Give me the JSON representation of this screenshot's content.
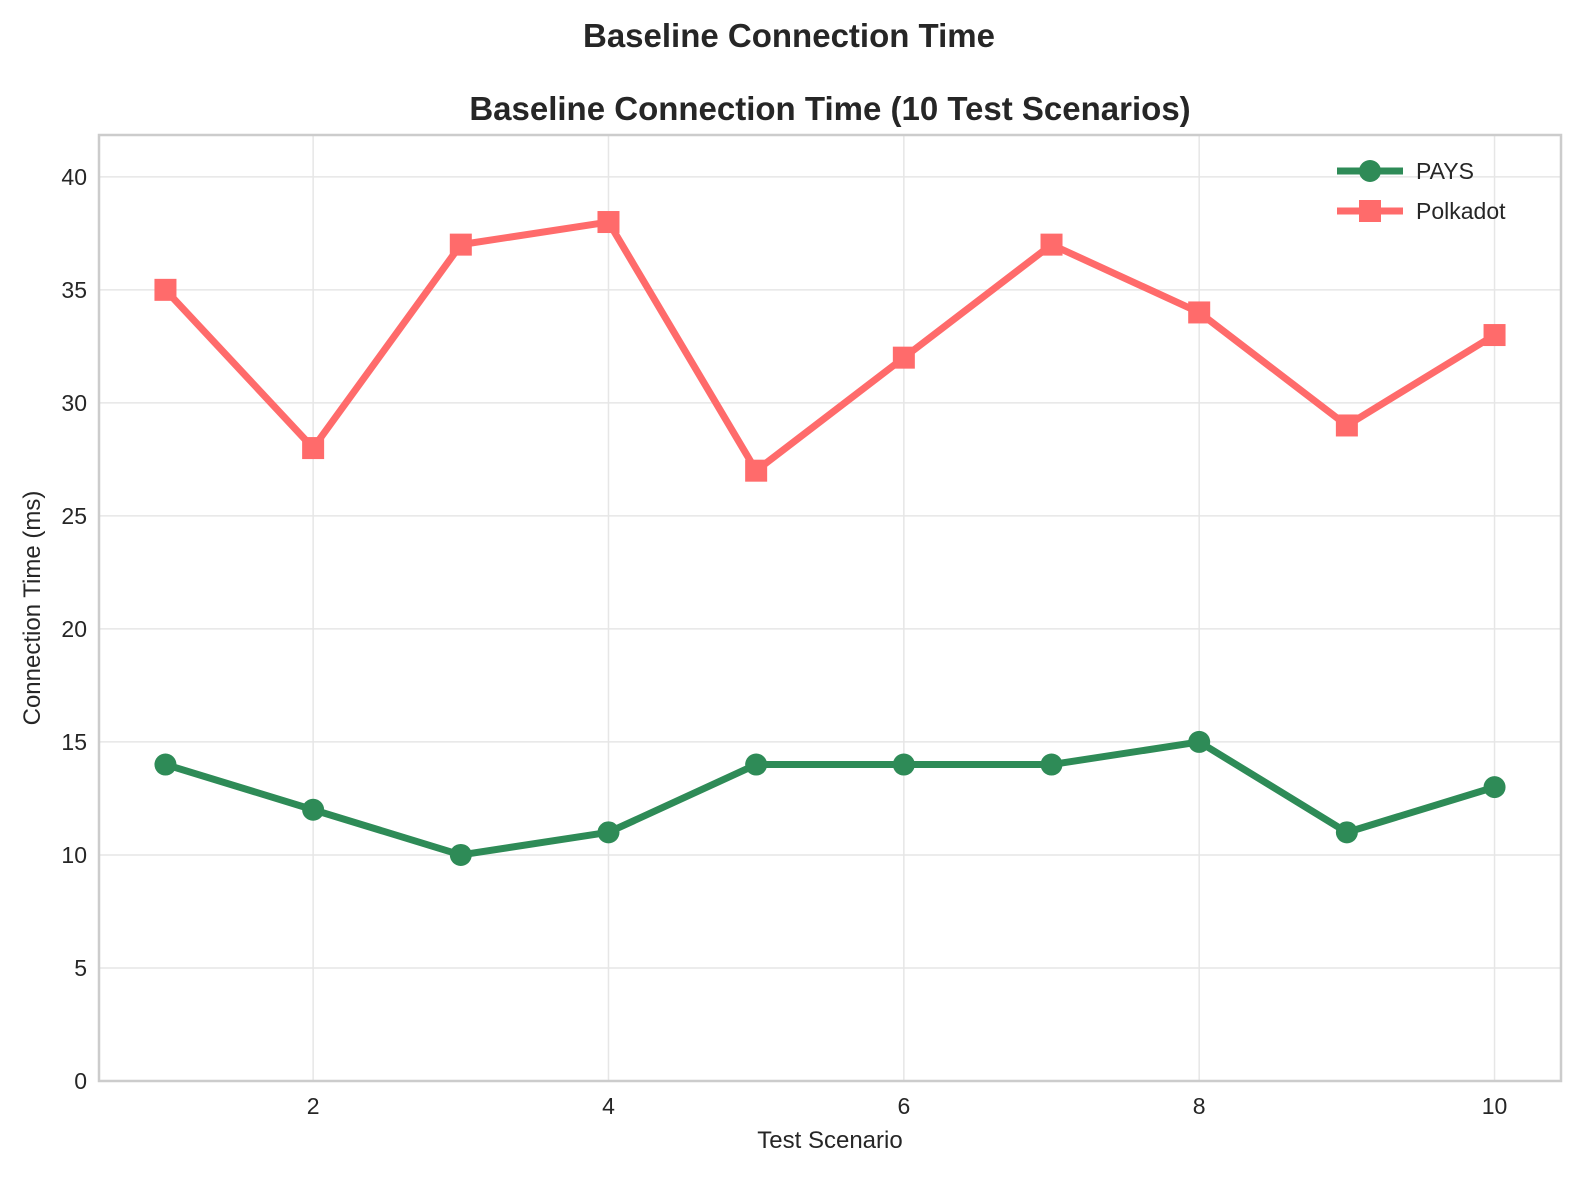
{
  "figure": {
    "suptitle": "Baseline Connection Time"
  },
  "chart_data": {
    "type": "line",
    "title": "Baseline Connection Time (10 Test Scenarios)",
    "xlabel": "Test Scenario",
    "ylabel": "Connection Time (ms)",
    "x": [
      1,
      2,
      3,
      4,
      5,
      6,
      7,
      8,
      9,
      10
    ],
    "xlim": [
      0.55,
      10.45
    ],
    "ylim": [
      0,
      41.85
    ],
    "xticks": [
      2,
      4,
      6,
      8,
      10
    ],
    "yticks": [
      0,
      5,
      10,
      15,
      20,
      25,
      30,
      35,
      40
    ],
    "grid": true,
    "legend_position": "top-right",
    "series": [
      {
        "name": "PAYS",
        "color": "#2e8b57",
        "marker": "circle",
        "values": [
          14,
          12,
          10,
          11,
          14,
          14,
          14,
          15,
          11,
          13
        ]
      },
      {
        "name": "Polkadot",
        "color": "#ff6b6b",
        "marker": "square",
        "values": [
          35,
          28,
          37,
          38,
          27,
          32,
          37,
          34,
          29,
          33
        ]
      }
    ]
  }
}
